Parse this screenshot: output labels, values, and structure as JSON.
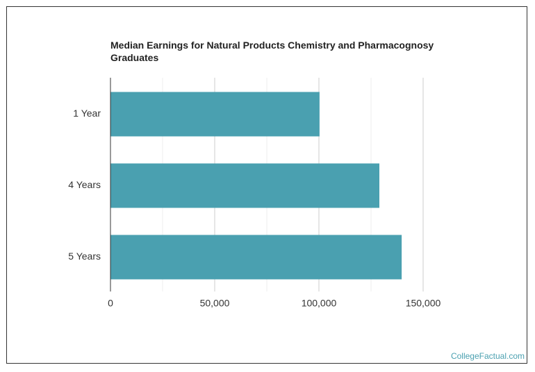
{
  "chart_data": {
    "type": "barh",
    "title": "Median Earnings for Natural Products Chemistry and Pharmacognosy Graduates",
    "categories": [
      "1 Year",
      "4 Years",
      "5 Years"
    ],
    "values": [
      100300,
      129000,
      139700
    ],
    "color": "#4aa0b0",
    "xlim": [
      0,
      150000
    ],
    "xticks": [
      0,
      {
        "value": 50000,
        "label": "50,000"
      },
      {
        "value": 100000,
        "label": "100,000"
      },
      {
        "value": 150000,
        "label": "150,000"
      }
    ],
    "xminorticks": [
      25000,
      75000,
      125000
    ],
    "grid": true,
    "source": "CollegeFactual.com"
  }
}
